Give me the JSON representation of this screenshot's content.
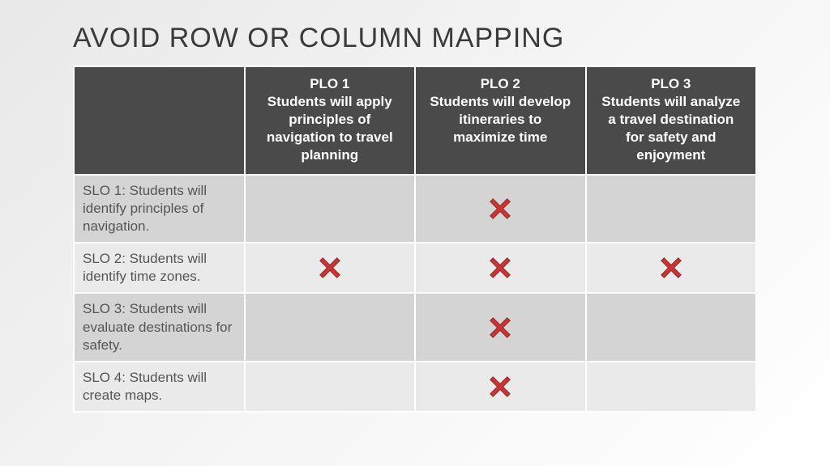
{
  "title": "AVOID ROW OR COLUMN MAPPING",
  "table": {
    "header_bg": "#4a4a4a",
    "header_text_color": "#ffffff",
    "row_odd_bg": "#d4d4d4",
    "row_even_bg": "#eaeaea",
    "border_color": "#ffffff",
    "text_color": "#555555",
    "columns": [
      {
        "title": "",
        "desc": ""
      },
      {
        "title": "PLO 1",
        "desc": "Students will apply principles of navigation to travel planning"
      },
      {
        "title": "PLO 2",
        "desc": "Students will develop itineraries to maximize time"
      },
      {
        "title": "PLO 3",
        "desc": "Students will analyze a travel destination for safety and enjoyment"
      }
    ],
    "rows": [
      {
        "label": "SLO 1: Students will identify principles of navigation.",
        "marks": [
          false,
          true,
          false
        ]
      },
      {
        "label": "SLO 2: Students will identify time zones.",
        "marks": [
          true,
          true,
          true
        ]
      },
      {
        "label": "SLO 3: Students will evaluate destinations for safety.",
        "marks": [
          false,
          true,
          false
        ]
      },
      {
        "label": "SLO 4: Students will create maps.",
        "marks": [
          false,
          true,
          false
        ]
      }
    ],
    "mark_icon": {
      "type": "x-cross",
      "fill": "#c93434",
      "stroke": "#8e1f1f"
    }
  }
}
